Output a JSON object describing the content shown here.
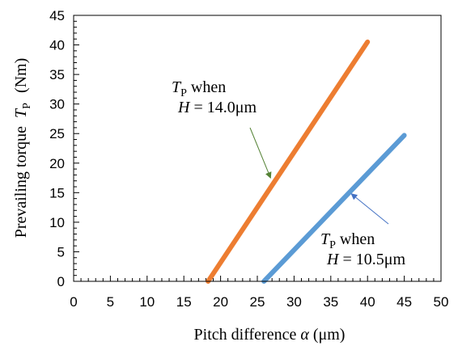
{
  "chart_data": {
    "type": "line",
    "xlabel": "Pitch difference α (μm)",
    "ylabel": "Prevailing torque T_P (Nm)",
    "xlim": [
      0,
      50
    ],
    "ylim": [
      0,
      45
    ],
    "x_ticks": [
      0,
      5,
      10,
      15,
      20,
      25,
      30,
      35,
      40,
      45,
      50
    ],
    "y_ticks": [
      0,
      5,
      10,
      15,
      20,
      25,
      30,
      35,
      40,
      45
    ],
    "grid": false,
    "series": [
      {
        "label_line1": "T_P when",
        "label_line2": "H = 14.0μm",
        "color": "#ED7D31",
        "x": [
          18.3,
          40.0
        ],
        "y": [
          0.0,
          40.5
        ]
      },
      {
        "label_line1": "T_P when",
        "label_line2": "H = 10.5μm",
        "color": "#5B9BD5",
        "x": [
          25.9,
          45.0
        ],
        "y": [
          0.0,
          24.7
        ]
      }
    ],
    "annotations": [
      {
        "series": 0,
        "arrow_color": "#548235",
        "arrow_to": [
          26.8,
          17.5
        ]
      },
      {
        "series": 1,
        "arrow_color": "#4472C4",
        "arrow_to": [
          37.8,
          14.8
        ]
      }
    ]
  },
  "text": {
    "ylabel_main": "Prevailing torque",
    "ylabel_sym": "T",
    "ylabel_sub": "P",
    "ylabel_unit": "(Nm)",
    "xlabel_main": "Pitch difference ",
    "xlabel_sym": "α",
    "xlabel_unit": " (μm)",
    "orange_T": "T",
    "orange_sub": "P",
    "orange_when": " when",
    "orange_H": "H",
    "orange_eq": " = 14.0μm",
    "blue_T": "T",
    "blue_sub": "P",
    "blue_when": " when",
    "blue_H": "H",
    "blue_eq": " = 10.5μm"
  }
}
